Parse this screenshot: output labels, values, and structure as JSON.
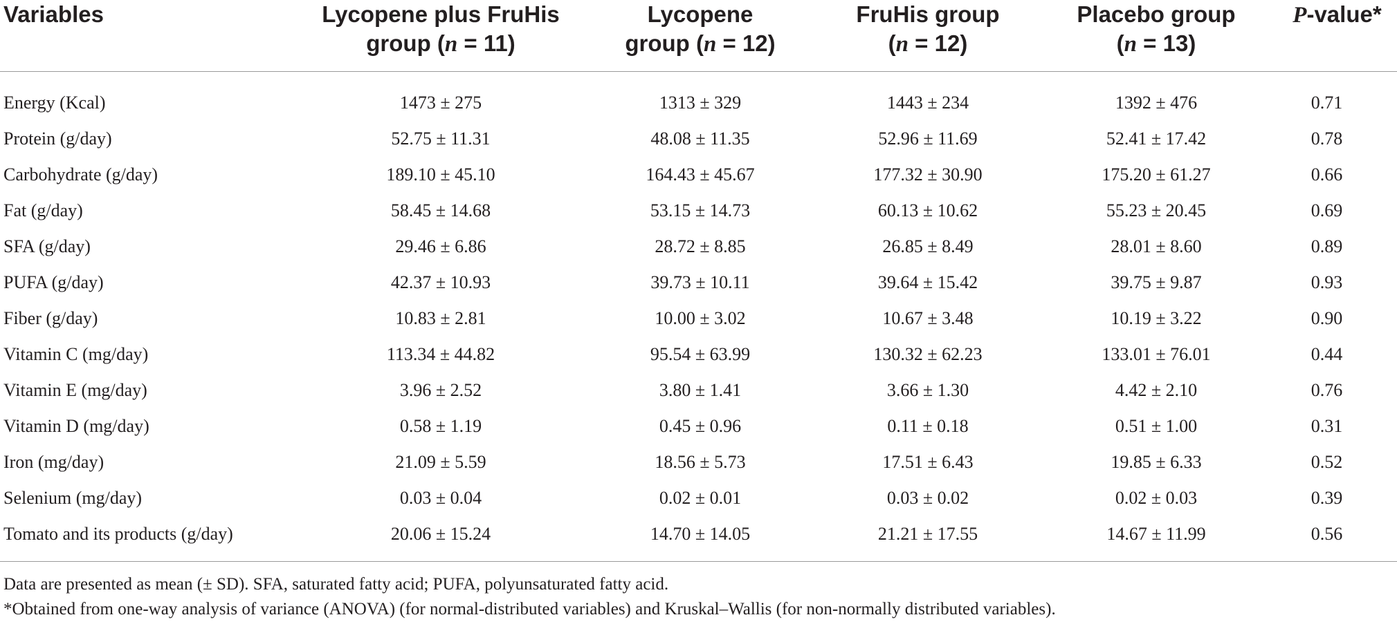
{
  "headers": {
    "variables": "Variables",
    "col1": {
      "line1": "Lycopene plus FruHis",
      "line2_pre": "group (",
      "n": "n",
      "line2_post": " = 11)"
    },
    "col2": {
      "line1": "Lycopene",
      "line2_pre": "group (",
      "n": "n",
      "line2_post": " = 12)"
    },
    "col3": {
      "line1": "FruHis group",
      "line2_pre": "(",
      "n": "n",
      "line2_post": " = 12)"
    },
    "col4": {
      "line1": "Placebo group",
      "line2_pre": "(",
      "n": "n",
      "line2_post": " = 13)"
    },
    "pvalue": {
      "p": "P",
      "rest": "-value*"
    }
  },
  "rows": [
    {
      "label": "Energy (Kcal)",
      "c1": "1473 ± 275",
      "c2": "1313 ± 329",
      "c3": "1443 ± 234",
      "c4": "1392 ± 476",
      "p": "0.71"
    },
    {
      "label": "Protein (g/day)",
      "c1": "52.75 ± 11.31",
      "c2": "48.08 ± 11.35",
      "c3": "52.96 ± 11.69",
      "c4": "52.41 ± 17.42",
      "p": "0.78"
    },
    {
      "label": "Carbohydrate (g/day)",
      "c1": "189.10 ± 45.10",
      "c2": "164.43 ± 45.67",
      "c3": "177.32 ± 30.90",
      "c4": "175.20 ± 61.27",
      "p": "0.66"
    },
    {
      "label": "Fat (g/day)",
      "c1": "58.45 ± 14.68",
      "c2": "53.15 ± 14.73",
      "c3": "60.13 ± 10.62",
      "c4": "55.23 ± 20.45",
      "p": "0.69"
    },
    {
      "label": "SFA (g/day)",
      "c1": "29.46 ± 6.86",
      "c2": "28.72 ± 8.85",
      "c3": "26.85 ± 8.49",
      "c4": "28.01 ± 8.60",
      "p": "0.89"
    },
    {
      "label": "PUFA (g/day)",
      "c1": "42.37 ± 10.93",
      "c2": "39.73 ± 10.11",
      "c3": "39.64 ± 15.42",
      "c4": "39.75 ± 9.87",
      "p": "0.93"
    },
    {
      "label": "Fiber (g/day)",
      "c1": "10.83 ± 2.81",
      "c2": "10.00 ± 3.02",
      "c3": "10.67 ± 3.48",
      "c4": "10.19 ± 3.22",
      "p": "0.90"
    },
    {
      "label": "Vitamin C (mg/day)",
      "c1": "113.34 ± 44.82",
      "c2": "95.54 ± 63.99",
      "c3": "130.32 ± 62.23",
      "c4": "133.01 ± 76.01",
      "p": "0.44"
    },
    {
      "label": "Vitamin E (mg/day)",
      "c1": "3.96 ± 2.52",
      "c2": "3.80 ± 1.41",
      "c3": "3.66 ± 1.30",
      "c4": "4.42 ± 2.10",
      "p": "0.76"
    },
    {
      "label": "Vitamin D (mg/day)",
      "c1": "0.58 ± 1.19",
      "c2": "0.45 ± 0.96",
      "c3": "0.11 ± 0.18",
      "c4": "0.51 ± 1.00",
      "p": "0.31"
    },
    {
      "label": "Iron (mg/day)",
      "c1": "21.09 ± 5.59",
      "c2": "18.56 ± 5.73",
      "c3": "17.51 ± 6.43",
      "c4": "19.85 ± 6.33",
      "p": "0.52"
    },
    {
      "label": "Selenium (mg/day)",
      "c1": "0.03 ± 0.04",
      "c2": "0.02 ± 0.01",
      "c3": "0.03 ± 0.02",
      "c4": "0.02 ± 0.03",
      "p": "0.39"
    },
    {
      "label": "Tomato and its products (g/day)",
      "c1": "20.06 ± 15.24",
      "c2": "14.70 ± 14.05",
      "c3": "21.21 ± 17.55",
      "c4": "14.67 ± 11.99",
      "p": "0.56"
    }
  ],
  "footnotes": {
    "note1": "Data are presented as mean (± SD). SFA, saturated fatty acid; PUFA, polyunsaturated fatty acid.",
    "note2": "*Obtained from one-way analysis of variance (ANOVA) (for normal-distributed variables) and Kruskal–Wallis (for non-normally distributed variables)."
  }
}
